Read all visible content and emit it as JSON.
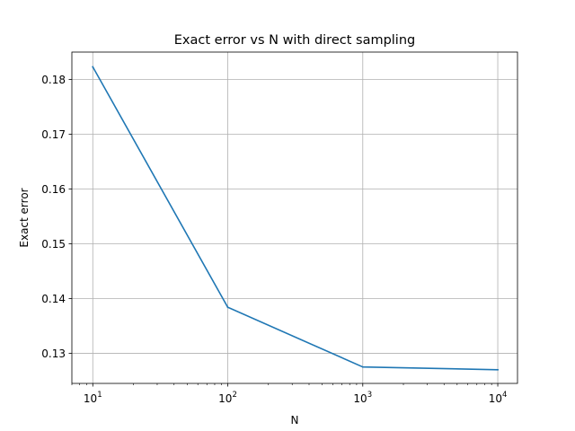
{
  "chart_data": {
    "type": "line",
    "title": "Exact error vs N with direct sampling",
    "xlabel": "N",
    "ylabel": "Exact error",
    "xscale": "log",
    "xlim": [
      7,
      14000
    ],
    "ylim": [
      0.1245,
      0.185
    ],
    "grid": true,
    "x": [
      10,
      100,
      1000,
      10000
    ],
    "x_tick_labels": [
      {
        "base": "10",
        "exp": "1"
      },
      {
        "base": "10",
        "exp": "2"
      },
      {
        "base": "10",
        "exp": "3"
      },
      {
        "base": "10",
        "exp": "4"
      }
    ],
    "y_ticks": [
      0.13,
      0.14,
      0.15,
      0.16,
      0.17,
      0.18
    ],
    "y_tick_labels": [
      "0.13",
      "0.14",
      "0.15",
      "0.16",
      "0.17",
      "0.18"
    ],
    "series": [
      {
        "values": [
          0.1823,
          0.1384,
          0.1275,
          0.127
        ],
        "color": "#1f77b4"
      }
    ]
  }
}
